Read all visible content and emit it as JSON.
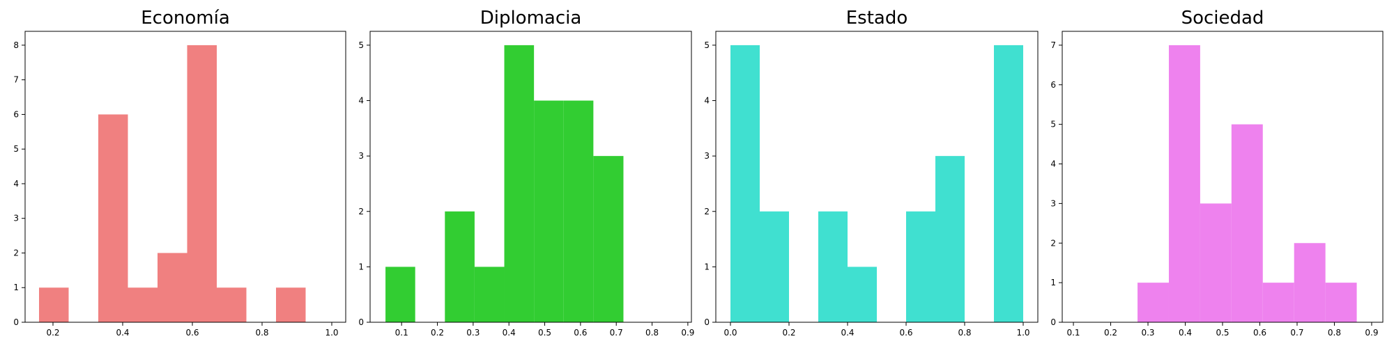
{
  "chart_data": [
    {
      "type": "bar",
      "title": "Economía",
      "color": "#f08080",
      "bins": [
        {
          "x0": 0.16,
          "x1": 0.245,
          "count": 1
        },
        {
          "x0": 0.33,
          "x1": 0.415,
          "count": 6
        },
        {
          "x0": 0.415,
          "x1": 0.5,
          "count": 1
        },
        {
          "x0": 0.5,
          "x1": 0.585,
          "count": 2
        },
        {
          "x0": 0.585,
          "x1": 0.67,
          "count": 8
        },
        {
          "x0": 0.67,
          "x1": 0.755,
          "count": 1
        },
        {
          "x0": 0.84,
          "x1": 0.925,
          "count": 1
        }
      ],
      "xlim": [
        0.12,
        1.04
      ],
      "ylim": [
        0,
        8.4
      ],
      "xticks": [
        {
          "v": 0.2,
          "label": "0.2"
        },
        {
          "v": 0.4,
          "label": "0.4"
        },
        {
          "v": 0.6,
          "label": "0.6"
        },
        {
          "v": 0.8,
          "label": "0.8"
        },
        {
          "v": 1.0,
          "label": "1.0"
        }
      ],
      "yticks": [
        {
          "v": 0,
          "label": "0"
        },
        {
          "v": 1,
          "label": "1"
        },
        {
          "v": 2,
          "label": "2"
        },
        {
          "v": 3,
          "label": "3"
        },
        {
          "v": 4,
          "label": "4"
        },
        {
          "v": 5,
          "label": "5"
        },
        {
          "v": 6,
          "label": "6"
        },
        {
          "v": 7,
          "label": "7"
        },
        {
          "v": 8,
          "label": "8"
        }
      ]
    },
    {
      "type": "bar",
      "title": "Diplomacia",
      "color": "#32cd32",
      "bins": [
        {
          "x0": 0.055,
          "x1": 0.138,
          "count": 1
        },
        {
          "x0": 0.221,
          "x1": 0.304,
          "count": 2
        },
        {
          "x0": 0.304,
          "x1": 0.387,
          "count": 1
        },
        {
          "x0": 0.387,
          "x1": 0.47,
          "count": 5
        },
        {
          "x0": 0.47,
          "x1": 0.553,
          "count": 4
        },
        {
          "x0": 0.553,
          "x1": 0.636,
          "count": 4
        },
        {
          "x0": 0.636,
          "x1": 0.72,
          "count": 3
        }
      ],
      "xlim": [
        0.012,
        0.91
      ],
      "ylim": [
        0,
        5.25
      ],
      "xticks": [
        {
          "v": 0.1,
          "label": "0.1"
        },
        {
          "v": 0.2,
          "label": "0.2"
        },
        {
          "v": 0.3,
          "label": "0.3"
        },
        {
          "v": 0.4,
          "label": "0.4"
        },
        {
          "v": 0.5,
          "label": "0.5"
        },
        {
          "v": 0.6,
          "label": "0.6"
        },
        {
          "v": 0.7,
          "label": "0.7"
        },
        {
          "v": 0.8,
          "label": "0.8"
        },
        {
          "v": 0.9,
          "label": "0.9"
        }
      ],
      "yticks": [
        {
          "v": 0,
          "label": "0"
        },
        {
          "v": 1,
          "label": "1"
        },
        {
          "v": 2,
          "label": "2"
        },
        {
          "v": 3,
          "label": "3"
        },
        {
          "v": 4,
          "label": "4"
        },
        {
          "v": 5,
          "label": "5"
        }
      ]
    },
    {
      "type": "bar",
      "title": "Estado",
      "color": "#40e0d0",
      "bins": [
        {
          "x0": 0.0,
          "x1": 0.1,
          "count": 5
        },
        {
          "x0": 0.1,
          "x1": 0.2,
          "count": 2
        },
        {
          "x0": 0.3,
          "x1": 0.4,
          "count": 2
        },
        {
          "x0": 0.4,
          "x1": 0.5,
          "count": 1
        },
        {
          "x0": 0.6,
          "x1": 0.7,
          "count": 2
        },
        {
          "x0": 0.7,
          "x1": 0.8,
          "count": 3
        },
        {
          "x0": 0.9,
          "x1": 1.0,
          "count": 5
        }
      ],
      "xlim": [
        -0.05,
        1.05
      ],
      "ylim": [
        0,
        5.25
      ],
      "xticks": [
        {
          "v": 0.0,
          "label": "0.0"
        },
        {
          "v": 0.2,
          "label": "0.2"
        },
        {
          "v": 0.4,
          "label": "0.4"
        },
        {
          "v": 0.6,
          "label": "0.6"
        },
        {
          "v": 0.8,
          "label": "0.8"
        },
        {
          "v": 1.0,
          "label": "1.0"
        }
      ],
      "yticks": [
        {
          "v": 0,
          "label": "0"
        },
        {
          "v": 1,
          "label": "1"
        },
        {
          "v": 2,
          "label": "2"
        },
        {
          "v": 3,
          "label": "3"
        },
        {
          "v": 4,
          "label": "4"
        },
        {
          "v": 5,
          "label": "5"
        }
      ]
    },
    {
      "type": "bar",
      "title": "Sociedad",
      "color": "#ee82ee",
      "bins": [
        {
          "x0": 0.272,
          "x1": 0.356,
          "count": 1
        },
        {
          "x0": 0.356,
          "x1": 0.44,
          "count": 7
        },
        {
          "x0": 0.44,
          "x1": 0.524,
          "count": 3
        },
        {
          "x0": 0.524,
          "x1": 0.608,
          "count": 5
        },
        {
          "x0": 0.608,
          "x1": 0.692,
          "count": 1
        },
        {
          "x0": 0.692,
          "x1": 0.776,
          "count": 2
        },
        {
          "x0": 0.776,
          "x1": 0.86,
          "count": 1
        }
      ],
      "xlim": [
        0.07,
        0.93
      ],
      "ylim": [
        0,
        7.35
      ],
      "xticks": [
        {
          "v": 0.1,
          "label": "0.1"
        },
        {
          "v": 0.2,
          "label": "0.2"
        },
        {
          "v": 0.3,
          "label": "0.3"
        },
        {
          "v": 0.4,
          "label": "0.4"
        },
        {
          "v": 0.5,
          "label": "0.5"
        },
        {
          "v": 0.6,
          "label": "0.6"
        },
        {
          "v": 0.7,
          "label": "0.7"
        },
        {
          "v": 0.8,
          "label": "0.8"
        },
        {
          "v": 0.9,
          "label": "0.9"
        }
      ],
      "yticks": [
        {
          "v": 0,
          "label": "0"
        },
        {
          "v": 1,
          "label": "1"
        },
        {
          "v": 2,
          "label": "2"
        },
        {
          "v": 3,
          "label": "3"
        },
        {
          "v": 4,
          "label": "4"
        },
        {
          "v": 5,
          "label": "5"
        },
        {
          "v": 6,
          "label": "6"
        },
        {
          "v": 7,
          "label": "7"
        }
      ]
    }
  ]
}
